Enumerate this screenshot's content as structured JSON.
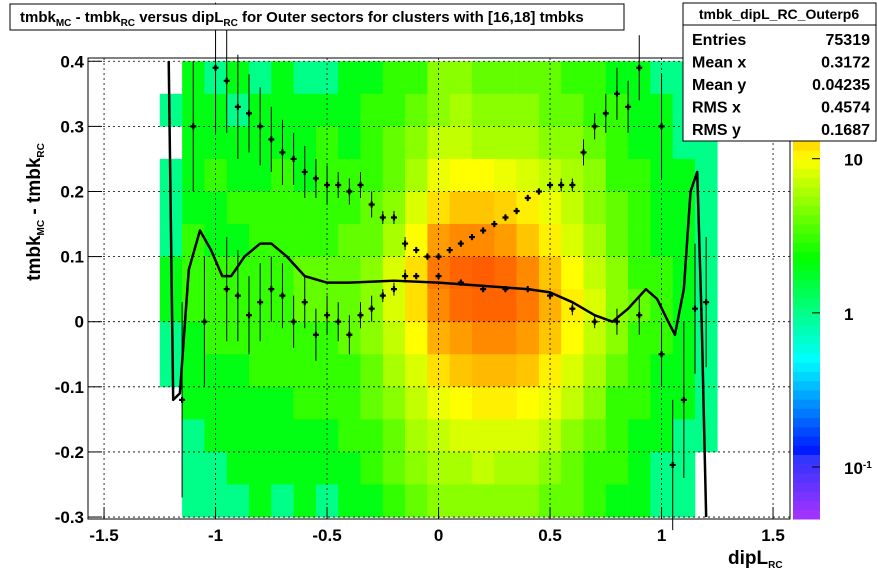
{
  "chart_data": {
    "type": "heatmap-profile",
    "title": [
      "tmbk",
      "MC",
      " - tmbk",
      "RC",
      " versus dipL",
      "RC",
      " for Outer sectors for clusters with [16,18] tmbks"
    ],
    "x_label": [
      "dipL",
      "RC"
    ],
    "y_label": [
      "tmbk",
      "MC",
      " - tmbk",
      "RC"
    ],
    "xlim": [
      -1.572,
      1.576
    ],
    "ylim": [
      -0.303,
      0.405
    ],
    "xticks": [
      -1.5,
      -1,
      -0.5,
      0,
      0.5,
      1,
      1.5
    ],
    "yticks": [
      -0.3,
      -0.2,
      -0.1,
      0,
      0.1,
      0.2,
      0.3,
      0.4
    ],
    "grid": true,
    "zlog": true,
    "zlim": [
      0.046,
      45
    ],
    "zticks": [
      {
        "value": 10,
        "label": "10"
      },
      {
        "value": 1,
        "label": "1"
      },
      {
        "value": 0.1,
        "label": "10",
        "exponent": "-1"
      }
    ],
    "stats": {
      "title": "tmbk_dipL_RC_Outerp6",
      "rows": [
        {
          "label": "Entries",
          "value": 75319
        },
        {
          "label": "Mean x",
          "value": 0.3172
        },
        {
          "label": "Mean y",
          "value": 0.04235
        },
        {
          "label": "RMS x",
          "value": 0.4574
        },
        {
          "label": "RMS y",
          "value": 0.1687
        }
      ]
    },
    "heatmap": {
      "xbins": [
        -1.25,
        -1.15,
        -1.05,
        -0.95,
        -0.85,
        -0.75,
        -0.65,
        -0.55,
        -0.45,
        -0.35,
        -0.25,
        -0.15,
        -0.05,
        0.05,
        0.15,
        0.25,
        0.35,
        0.45,
        0.55,
        0.65,
        0.75,
        0.85,
        0.95,
        1.05,
        1.15,
        1.25
      ],
      "ybins": [
        0.4,
        0.35,
        0.3,
        0.25,
        0.2,
        0.15,
        0.1,
        0.05,
        0,
        -0.05,
        -0.1,
        -0.15,
        -0.2,
        -0.25,
        -0.3
      ],
      "values": [
        [
          null,
          2,
          1,
          2,
          1,
          2,
          1,
          1,
          2,
          2,
          3,
          3,
          5,
          5,
          4,
          4,
          4,
          4,
          3,
          3,
          2,
          2,
          1,
          1,
          null
        ],
        [
          1,
          2,
          2,
          1,
          2,
          2,
          2,
          2,
          2,
          3,
          3,
          4,
          5,
          6,
          5,
          5,
          5,
          4,
          4,
          3,
          3,
          2,
          2,
          1,
          null
        ],
        [
          null,
          2,
          2,
          2,
          2,
          2,
          2,
          3,
          2,
          3,
          4,
          5,
          7,
          7,
          6,
          6,
          6,
          5,
          5,
          4,
          3,
          2,
          2,
          1,
          1
        ],
        [
          1,
          2,
          3,
          2,
          2,
          3,
          2,
          3,
          3,
          3,
          4,
          6,
          9,
          10,
          10,
          9,
          8,
          7,
          6,
          5,
          3,
          3,
          2,
          2,
          1
        ],
        [
          1,
          2,
          2,
          3,
          3,
          3,
          3,
          3,
          3,
          4,
          5,
          8,
          12,
          14,
          14,
          13,
          11,
          9,
          7,
          5,
          4,
          3,
          2,
          2,
          1
        ],
        [
          1,
          3,
          2,
          2,
          3,
          3,
          3,
          3,
          4,
          4,
          6,
          10,
          18,
          20,
          20,
          18,
          14,
          11,
          8,
          6,
          4,
          3,
          2,
          2,
          1
        ],
        [
          2,
          3,
          3,
          3,
          3,
          3,
          4,
          4,
          4,
          5,
          8,
          12,
          22,
          25,
          26,
          24,
          20,
          14,
          10,
          7,
          5,
          3,
          3,
          2,
          1
        ],
        [
          2,
          3,
          3,
          3,
          3,
          3,
          4,
          4,
          4,
          5,
          8,
          12,
          20,
          24,
          25,
          25,
          22,
          16,
          11,
          8,
          5,
          4,
          3,
          2,
          1
        ],
        [
          1,
          2,
          3,
          3,
          3,
          3,
          3,
          3,
          4,
          5,
          7,
          10,
          16,
          18,
          20,
          20,
          18,
          14,
          10,
          7,
          5,
          3,
          3,
          2,
          1
        ],
        [
          1,
          2,
          2,
          2,
          3,
          3,
          3,
          3,
          3,
          4,
          6,
          8,
          12,
          14,
          15,
          15,
          14,
          11,
          8,
          6,
          4,
          3,
          2,
          2,
          1
        ],
        [
          null,
          2,
          2,
          2,
          2,
          2,
          3,
          3,
          3,
          4,
          5,
          7,
          9,
          10,
          11,
          11,
          10,
          9,
          7,
          5,
          3,
          3,
          2,
          2,
          1
        ],
        [
          null,
          1,
          2,
          2,
          2,
          2,
          2,
          2,
          3,
          3,
          4,
          6,
          7,
          8,
          8,
          8,
          8,
          7,
          5,
          4,
          3,
          2,
          2,
          1,
          1
        ],
        [
          null,
          1,
          1,
          2,
          2,
          2,
          2,
          2,
          2,
          3,
          4,
          5,
          6,
          6,
          7,
          6,
          6,
          5,
          4,
          3,
          3,
          2,
          1,
          1,
          null
        ],
        [
          null,
          1,
          1,
          1,
          2,
          1,
          2,
          1,
          2,
          2,
          3,
          4,
          5,
          5,
          5,
          5,
          5,
          4,
          4,
          3,
          2,
          2,
          1,
          1,
          null
        ]
      ]
    },
    "profiles": [
      {
        "color": "#000000",
        "x": [
          -1.1,
          -1.0,
          -0.95,
          -0.9,
          -0.85,
          -0.8,
          -0.75,
          -0.7,
          -0.65,
          -0.6,
          -0.55,
          -0.5,
          -0.45,
          -0.4,
          -0.35,
          -0.3,
          -0.25,
          -0.2,
          -0.15,
          -0.1,
          -0.05,
          0,
          0.05,
          0.1,
          0.15,
          0.2,
          0.25,
          0.3,
          0.35,
          0.4,
          0.45,
          0.5,
          0.55,
          0.6,
          0.65,
          0.7,
          0.75,
          0.8,
          0.85,
          0.9,
          1.0
        ],
        "values": [
          0.3,
          0.39,
          0.37,
          0.33,
          0.32,
          0.3,
          0.28,
          0.26,
          0.25,
          0.23,
          0.22,
          0.21,
          0.21,
          0.2,
          0.21,
          0.18,
          0.16,
          0.16,
          0.12,
          0.11,
          0.1,
          0.1,
          0.11,
          0.12,
          0.13,
          0.14,
          0.15,
          0.16,
          0.17,
          0.19,
          0.2,
          0.21,
          0.21,
          0.21,
          0.26,
          0.3,
          0.32,
          0.35,
          0.33,
          0.39,
          0.3
        ],
        "errors": [
          0.1,
          0.1,
          0.08,
          0.08,
          0.06,
          0.06,
          0.05,
          0.05,
          0.04,
          0.04,
          0.03,
          0.03,
          0.02,
          0.02,
          0.02,
          0.02,
          0.01,
          0.01,
          0.01,
          0.005,
          0.005,
          0.005,
          0.005,
          0.005,
          0.005,
          0.005,
          0.005,
          0.005,
          0.005,
          0.005,
          0.005,
          0.005,
          0.01,
          0.01,
          0.02,
          0.02,
          0.03,
          0.04,
          0.04,
          0.05,
          0.08
        ]
      },
      {
        "color": "#000000",
        "x": [
          -1.15,
          -1.05,
          -0.95,
          -0.9,
          -0.85,
          -0.8,
          -0.75,
          -0.7,
          -0.65,
          -0.6,
          -0.55,
          -0.5,
          -0.45,
          -0.4,
          -0.35,
          -0.3,
          -0.25,
          -0.2,
          -0.15,
          -0.1,
          0,
          0.1,
          0.2,
          0.3,
          0.4,
          0.5,
          0.6,
          0.7,
          0.8,
          0.9,
          1.0,
          1.05,
          1.1,
          1.15,
          1.2
        ],
        "values": [
          -0.12,
          0,
          0.05,
          0.04,
          0.01,
          0.03,
          0.05,
          0.04,
          0,
          0.03,
          -0.02,
          0.01,
          0,
          -0.02,
          0.01,
          0.02,
          0.04,
          0.05,
          0.07,
          0.07,
          0.07,
          0.06,
          0.05,
          0.05,
          0.05,
          0.04,
          0.02,
          0,
          0,
          0.01,
          -0.05,
          -0.22,
          -0.12,
          0.02,
          0.03
        ],
        "errors": [
          0.15,
          0.1,
          0.08,
          0.07,
          0.06,
          0.06,
          0.05,
          0.05,
          0.04,
          0.04,
          0.04,
          0.03,
          0.03,
          0.03,
          0.02,
          0.02,
          0.01,
          0.01,
          0.01,
          0.005,
          0.005,
          0.005,
          0.005,
          0.005,
          0.005,
          0.005,
          0.01,
          0.01,
          0.02,
          0.03,
          0.05,
          0.1,
          0.12,
          0.1,
          0.1
        ]
      }
    ],
    "fit": {
      "color": "#000000",
      "x": [
        -1.21,
        -1.19,
        -1.16,
        -1.12,
        -1.07,
        -1.02,
        -0.97,
        -0.93,
        -0.87,
        -0.8,
        -0.75,
        -0.68,
        -0.6,
        -0.5,
        -0.4,
        -0.2,
        0,
        0.2,
        0.4,
        0.5,
        0.6,
        0.7,
        0.78,
        0.85,
        0.93,
        0.98,
        1.03,
        1.06,
        1.1,
        1.13,
        1.16,
        1.18,
        1.2
      ],
      "values": [
        0.4,
        -0.12,
        -0.11,
        0.08,
        0.14,
        0.11,
        0.07,
        0.07,
        0.1,
        0.12,
        0.12,
        0.1,
        0.07,
        0.06,
        0.06,
        0.063,
        0.06,
        0.055,
        0.05,
        0.045,
        0.03,
        0.01,
        0,
        0.02,
        0.05,
        0.035,
        0,
        -0.02,
        0.05,
        0.2,
        0.23,
        0,
        -0.3
      ]
    }
  }
}
